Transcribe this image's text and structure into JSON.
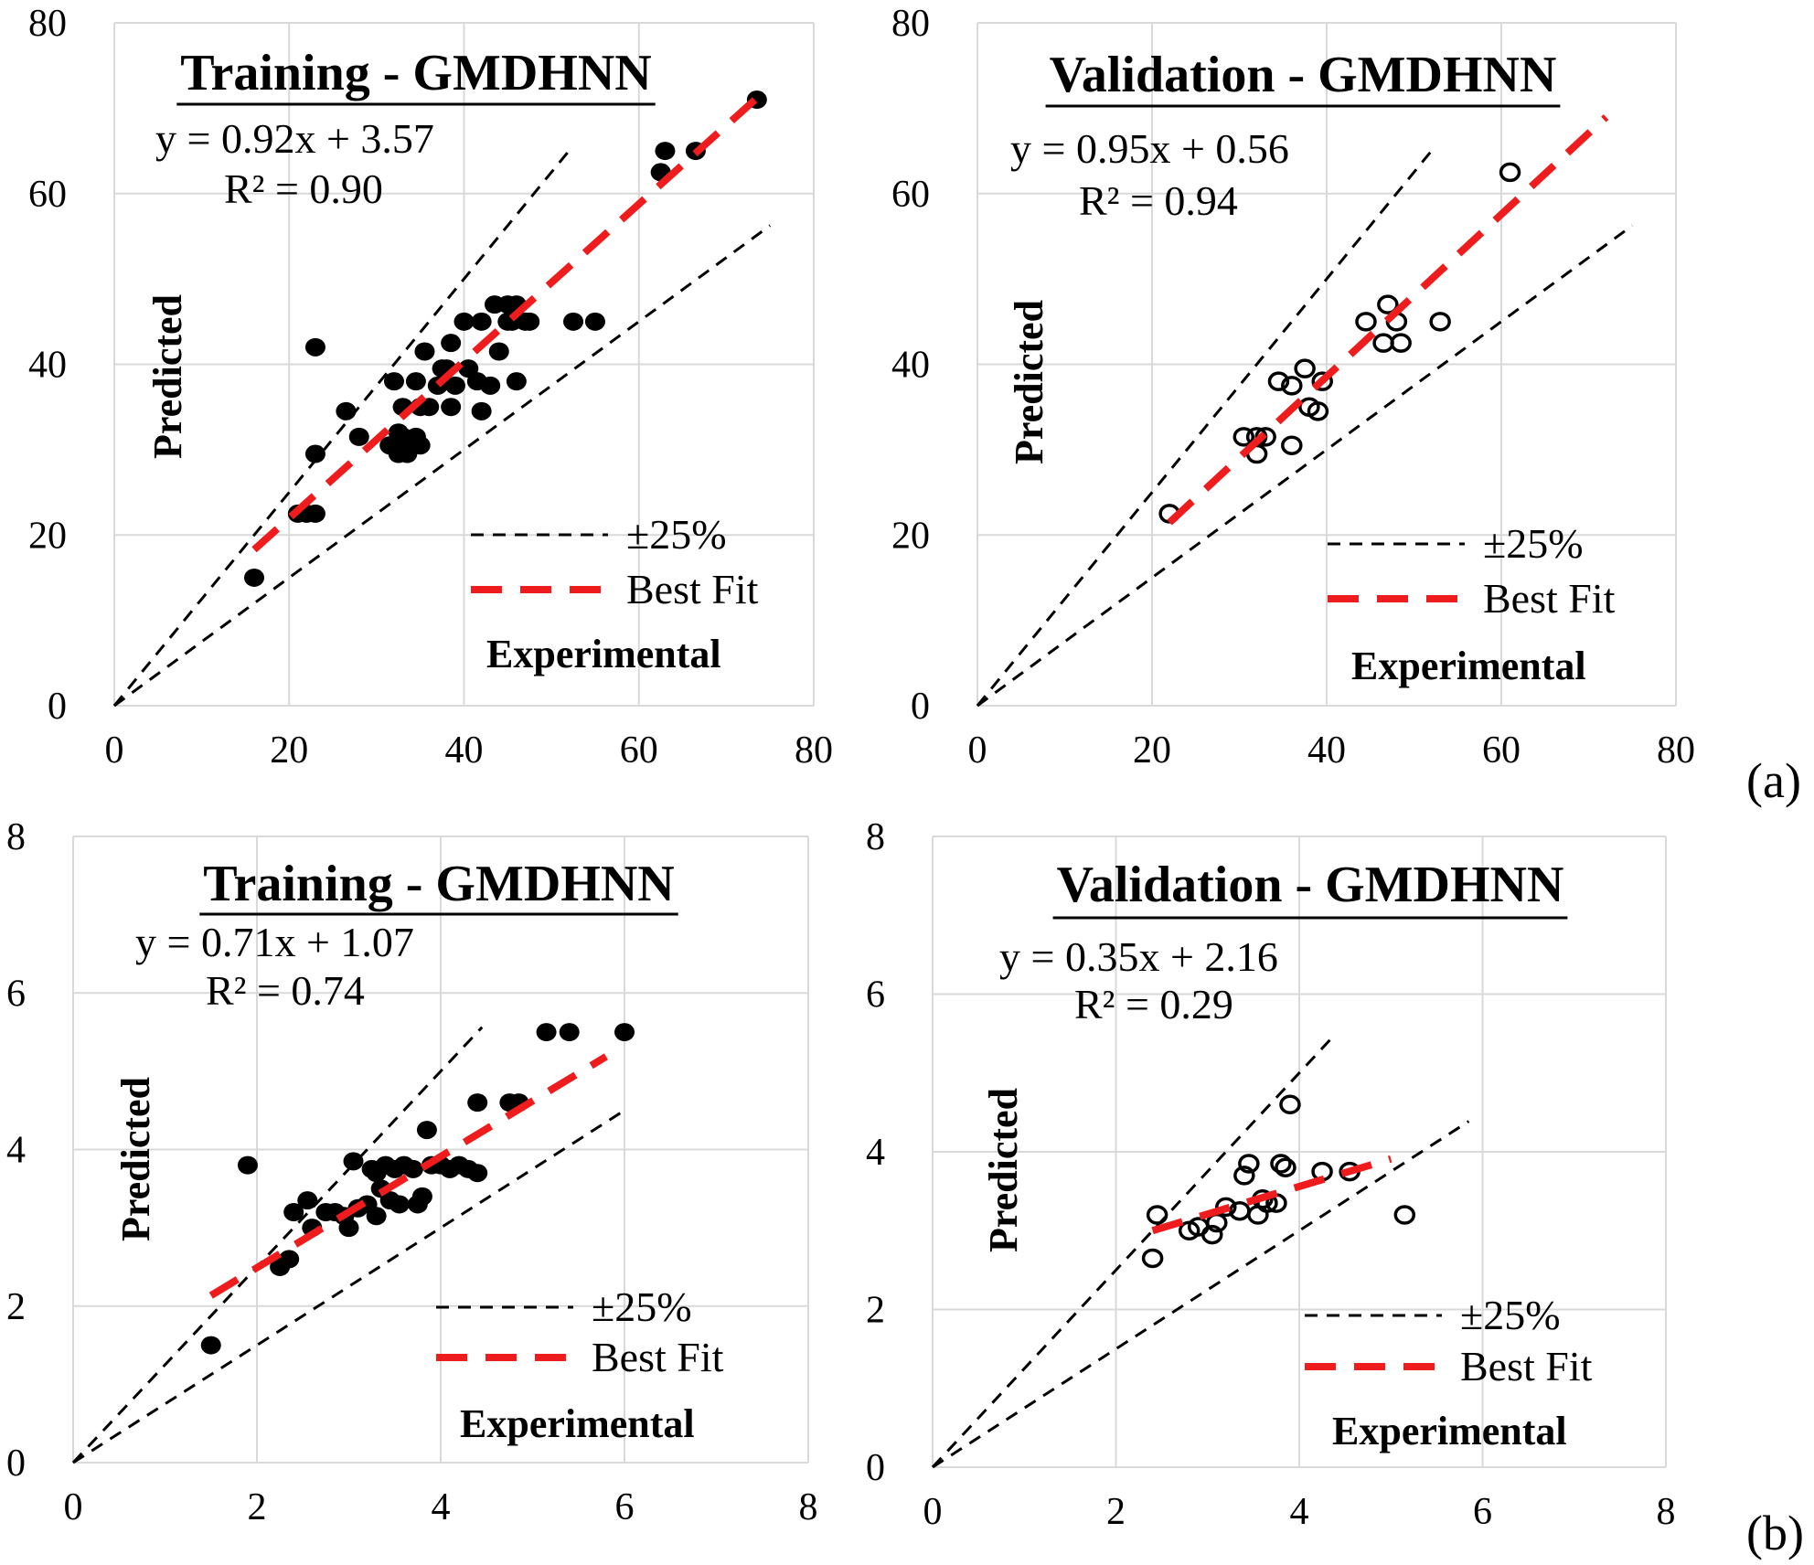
{
  "figure": {
    "panel_labels": [
      "(a)",
      "(b)"
    ]
  },
  "chart_data": [
    {
      "type": "scatter",
      "title": "Training - GMDHNN",
      "equation": "y = 0.92x + 3.57",
      "r2": "R² = 0.90",
      "xlabel": "Experimental",
      "ylabel": "Predicted",
      "xlim": [
        0,
        80
      ],
      "ylim": [
        0,
        80
      ],
      "xticks": [
        "0",
        "20",
        "40",
        "60",
        "80"
      ],
      "yticks": [
        "0",
        "20",
        "40",
        "60",
        "80"
      ],
      "marker": "filled",
      "fit": {
        "slope": 0.92,
        "intercept": 3.57,
        "x_range": [
          16,
          74
        ]
      },
      "bounds": {
        "upper_slope": 1.25,
        "lower_slope": 0.75,
        "upper_x_end": 52,
        "lower_x_end": 75
      },
      "legend": {
        "bounds_label": "±25%",
        "fit_label": "Best Fit"
      },
      "points": [
        [
          16,
          15
        ],
        [
          21,
          22.5
        ],
        [
          22,
          22.5
        ],
        [
          23,
          22.5
        ],
        [
          23,
          29.5
        ],
        [
          23,
          42
        ],
        [
          26.5,
          34.5
        ],
        [
          28,
          31.5
        ],
        [
          31.5,
          30.5
        ],
        [
          32,
          38
        ],
        [
          32.5,
          32
        ],
        [
          32.5,
          29.5
        ],
        [
          33,
          31.5
        ],
        [
          33,
          35
        ],
        [
          33.5,
          29.5
        ],
        [
          34,
          30.5
        ],
        [
          34.5,
          38
        ],
        [
          34.5,
          31.5
        ],
        [
          35,
          35
        ],
        [
          35,
          30.5
        ],
        [
          35.5,
          41.5
        ],
        [
          36,
          35
        ],
        [
          37,
          37.5
        ],
        [
          37.5,
          39.5
        ],
        [
          38,
          39.5
        ],
        [
          38.5,
          42.5
        ],
        [
          38.5,
          35
        ],
        [
          39,
          37.5
        ],
        [
          40,
          45
        ],
        [
          40.5,
          39.5
        ],
        [
          41.5,
          38
        ],
        [
          42,
          34.5
        ],
        [
          42,
          45
        ],
        [
          43,
          37.5
        ],
        [
          43.5,
          47
        ],
        [
          44,
          41.5
        ],
        [
          45,
          45
        ],
        [
          45,
          47
        ],
        [
          45.5,
          45
        ],
        [
          46,
          38
        ],
        [
          46,
          47
        ],
        [
          47,
          45
        ],
        [
          47.5,
          45
        ],
        [
          52.5,
          45
        ],
        [
          55,
          45
        ],
        [
          62.5,
          62.5
        ],
        [
          63,
          65
        ],
        [
          66.5,
          65
        ],
        [
          73.5,
          71
        ]
      ]
    },
    {
      "type": "scatter",
      "title": "Validation - GMDHNN",
      "equation": "y = 0.95x + 0.56",
      "r2": "R² = 0.94",
      "xlabel": "Experimental",
      "ylabel": "Predicted",
      "xlim": [
        0,
        80
      ],
      "ylim": [
        0,
        80
      ],
      "xticks": [
        "0",
        "20",
        "40",
        "60",
        "80"
      ],
      "yticks": [
        "0",
        "20",
        "40",
        "60",
        "80"
      ],
      "marker": "open",
      "fit": {
        "slope": 0.95,
        "intercept": 0.56,
        "x_range": [
          22,
          72
        ]
      },
      "bounds": {
        "upper_slope": 1.25,
        "lower_slope": 0.75,
        "upper_x_end": 52,
        "lower_x_end": 75
      },
      "legend": {
        "bounds_label": "±25%",
        "fit_label": "Best Fit"
      },
      "points": [
        [
          22,
          22.5
        ],
        [
          30.5,
          31.5
        ],
        [
          32,
          29.5
        ],
        [
          32,
          31.5
        ],
        [
          33,
          31.5
        ],
        [
          34.5,
          38
        ],
        [
          36,
          30.5
        ],
        [
          36,
          37.5
        ],
        [
          37.5,
          39.5
        ],
        [
          38,
          35
        ],
        [
          39,
          34.5
        ],
        [
          39.5,
          38
        ],
        [
          44.5,
          45
        ],
        [
          46.5,
          42.5
        ],
        [
          47,
          47
        ],
        [
          48,
          45
        ],
        [
          48.5,
          42.5
        ],
        [
          53,
          45
        ],
        [
          61,
          62.5
        ]
      ]
    },
    {
      "type": "scatter",
      "title": "Training - GMDHNN",
      "equation": "y = 0.71x + 1.07",
      "r2": "R² = 0.74",
      "xlabel": "Experimental",
      "ylabel": "Predicted",
      "xlim": [
        0,
        8
      ],
      "ylim": [
        0,
        8
      ],
      "xticks": [
        "0",
        "2",
        "4",
        "6",
        "8"
      ],
      "yticks": [
        "0",
        "2",
        "4",
        "6",
        "8"
      ],
      "marker": "filled",
      "fit": {
        "slope": 0.71,
        "intercept": 1.07,
        "x_range": [
          1.5,
          5.8
        ]
      },
      "bounds": {
        "upper_slope": 1.25,
        "lower_slope": 0.75,
        "upper_x_end": 4.45,
        "lower_x_end": 6.0
      },
      "legend": {
        "bounds_label": "±25%",
        "fit_label": "Best Fit"
      },
      "points": [
        [
          1.5,
          1.5
        ],
        [
          1.9,
          3.8
        ],
        [
          2.25,
          2.5
        ],
        [
          2.35,
          2.6
        ],
        [
          2.4,
          3.2
        ],
        [
          2.55,
          3.35
        ],
        [
          2.6,
          3.0
        ],
        [
          2.75,
          3.2
        ],
        [
          2.85,
          3.2
        ],
        [
          2.95,
          3.15
        ],
        [
          3.0,
          3.0
        ],
        [
          3.05,
          3.85
        ],
        [
          3.1,
          3.25
        ],
        [
          3.2,
          3.3
        ],
        [
          3.25,
          3.75
        ],
        [
          3.3,
          3.15
        ],
        [
          3.3,
          3.7
        ],
        [
          3.35,
          3.5
        ],
        [
          3.4,
          3.8
        ],
        [
          3.45,
          3.35
        ],
        [
          3.5,
          3.75
        ],
        [
          3.55,
          3.3
        ],
        [
          3.6,
          3.8
        ],
        [
          3.7,
          3.75
        ],
        [
          3.75,
          3.3
        ],
        [
          3.8,
          3.4
        ],
        [
          3.85,
          4.25
        ],
        [
          3.9,
          3.8
        ],
        [
          4.0,
          3.8
        ],
        [
          4.1,
          3.75
        ],
        [
          4.2,
          3.8
        ],
        [
          4.3,
          3.75
        ],
        [
          4.4,
          4.6
        ],
        [
          4.4,
          3.7
        ],
        [
          4.75,
          4.6
        ],
        [
          4.85,
          4.6
        ],
        [
          5.15,
          5.5
        ],
        [
          5.4,
          5.5
        ],
        [
          6.0,
          5.5
        ]
      ]
    },
    {
      "type": "scatter",
      "title": "Validation - GMDHNN",
      "equation": "y = 0.35x + 2.16",
      "r2": "R² = 0.29",
      "xlabel": "Experimental",
      "ylabel": "Predicted",
      "xlim": [
        0,
        8
      ],
      "ylim": [
        0,
        8
      ],
      "xticks": [
        "0",
        "2",
        "4",
        "6",
        "8"
      ],
      "yticks": [
        "0",
        "2",
        "4",
        "6",
        "8"
      ],
      "marker": "open",
      "fit": {
        "slope": 0.35,
        "intercept": 2.16,
        "x_range": [
          2.4,
          5.0
        ]
      },
      "bounds": {
        "upper_slope": 1.25,
        "lower_slope": 0.75,
        "upper_x_end": 4.35,
        "lower_x_end": 5.85
      },
      "legend": {
        "bounds_label": "±25%",
        "fit_label": "Best Fit"
      },
      "points": [
        [
          2.4,
          2.65
        ],
        [
          2.45,
          3.2
        ],
        [
          2.8,
          3.0
        ],
        [
          2.9,
          3.05
        ],
        [
          3.05,
          2.95
        ],
        [
          3.1,
          3.1
        ],
        [
          3.2,
          3.3
        ],
        [
          3.35,
          3.25
        ],
        [
          3.4,
          3.7
        ],
        [
          3.45,
          3.85
        ],
        [
          3.55,
          3.2
        ],
        [
          3.6,
          3.4
        ],
        [
          3.65,
          3.35
        ],
        [
          3.75,
          3.35
        ],
        [
          3.8,
          3.85
        ],
        [
          3.85,
          3.8
        ],
        [
          3.9,
          4.6
        ],
        [
          4.25,
          3.75
        ],
        [
          4.55,
          3.75
        ],
        [
          5.15,
          3.2
        ]
      ]
    }
  ]
}
